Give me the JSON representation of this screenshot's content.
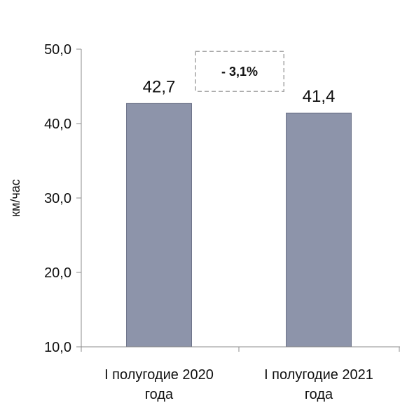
{
  "chart_data": {
    "type": "bar",
    "categories": [
      [
        "I полугодие 2020",
        "года"
      ],
      [
        "I полугодие 2021",
        "года"
      ]
    ],
    "values": [
      42.7,
      41.4
    ],
    "value_labels": [
      "42,7",
      "41,4"
    ],
    "ylabel": "км/час",
    "ylim": [
      10,
      50
    ],
    "yticks": [
      10,
      20,
      30,
      40,
      50
    ],
    "ytick_labels": [
      "10,0",
      "20,0",
      "30,0",
      "40,0",
      "50,0"
    ],
    "grid": false,
    "legend": "none",
    "annotation": {
      "text_prefix": "- ",
      "text_value": "3,1%"
    },
    "colors": {
      "bar_fill": "#8d94aa",
      "bar_stroke": "#6f758b",
      "axis": "#8c8c8c",
      "annotation_border": "#a6a6a6"
    }
  }
}
